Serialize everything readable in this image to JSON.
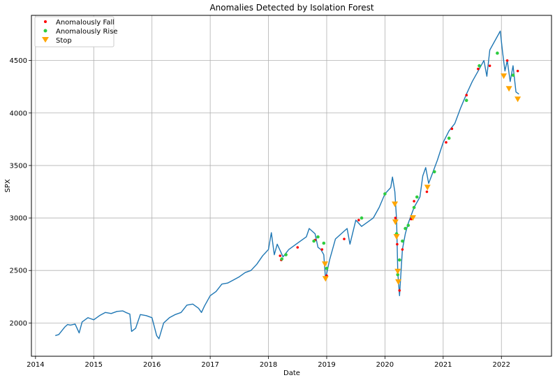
{
  "chart_data": {
    "type": "line",
    "title": "Anomalies Detected by Isolation Forest",
    "xlabel": "Date",
    "ylabel": "SPX",
    "xlim": [
      2013.93,
      2022.86
    ],
    "ylim": [
      1683,
      4930
    ],
    "grid": true,
    "legend_position": "top-left",
    "x_ticks": [
      "2014",
      "2015",
      "2016",
      "2017",
      "2018",
      "2019",
      "2020",
      "2021",
      "2022"
    ],
    "y_ticks": [
      2000,
      2500,
      3000,
      3500,
      4000,
      4500
    ],
    "colors": {
      "price": "#1f77b4",
      "fall": "#ff0000",
      "rise": "#2ecc40",
      "stop": "#ffa500"
    },
    "series": [
      {
        "name": "SPX",
        "x": [
          2014.34,
          2014.4,
          2014.5,
          2014.55,
          2014.6,
          2014.68,
          2014.75,
          2014.8,
          2014.9,
          2015.0,
          2015.1,
          2015.2,
          2015.3,
          2015.4,
          2015.5,
          2015.55,
          2015.62,
          2015.65,
          2015.72,
          2015.8,
          2015.9,
          2016.0,
          2016.08,
          2016.12,
          2016.2,
          2016.3,
          2016.4,
          2016.5,
          2016.6,
          2016.7,
          2016.8,
          2016.85,
          2016.9,
          2017.0,
          2017.1,
          2017.2,
          2017.3,
          2017.4,
          2017.5,
          2017.6,
          2017.7,
          2017.8,
          2017.9,
          2018.0,
          2018.05,
          2018.1,
          2018.15,
          2018.25,
          2018.35,
          2018.45,
          2018.55,
          2018.65,
          2018.7,
          2018.8,
          2018.85,
          2018.9,
          2018.95,
          2018.98,
          2019.05,
          2019.15,
          2019.25,
          2019.35,
          2019.4,
          2019.5,
          2019.6,
          2019.7,
          2019.8,
          2019.9,
          2020.0,
          2020.1,
          2020.13,
          2020.17,
          2020.2,
          2020.22,
          2020.25,
          2020.3,
          2020.35,
          2020.4,
          2020.5,
          2020.6,
          2020.65,
          2020.7,
          2020.75,
          2020.8,
          2020.9,
          2021.0,
          2021.1,
          2021.2,
          2021.3,
          2021.4,
          2021.5,
          2021.6,
          2021.7,
          2021.75,
          2021.8,
          2021.9,
          2021.98,
          2022.02,
          2022.06,
          2022.1,
          2022.15,
          2022.2,
          2022.25,
          2022.3
        ],
        "y": [
          1880,
          1890,
          1960,
          1985,
          1980,
          1990,
          1905,
          2010,
          2050,
          2030,
          2070,
          2100,
          2090,
          2110,
          2115,
          2100,
          2085,
          1920,
          1950,
          2080,
          2070,
          2050,
          1880,
          1850,
          2000,
          2050,
          2080,
          2100,
          2170,
          2180,
          2140,
          2100,
          2160,
          2260,
          2300,
          2370,
          2380,
          2410,
          2440,
          2480,
          2500,
          2560,
          2640,
          2700,
          2860,
          2650,
          2750,
          2630,
          2700,
          2740,
          2780,
          2820,
          2900,
          2850,
          2720,
          2700,
          2650,
          2420,
          2600,
          2800,
          2850,
          2900,
          2750,
          2980,
          2920,
          2960,
          3000,
          3100,
          3230,
          3290,
          3390,
          3250,
          2980,
          2480,
          2260,
          2700,
          2850,
          2950,
          3100,
          3200,
          3400,
          3480,
          3330,
          3400,
          3550,
          3720,
          3830,
          3900,
          4050,
          4180,
          4300,
          4400,
          4500,
          4350,
          4600,
          4700,
          4780,
          4580,
          4400,
          4500,
          4300,
          4450,
          4200,
          4180
        ]
      },
      {
        "name": "Anomalously Fall",
        "x": [
          2018.2,
          2018.22,
          2018.5,
          2018.8,
          2018.92,
          2019.0,
          2019.3,
          2019.55,
          2020.18,
          2020.21,
          2020.23,
          2020.25,
          2020.3,
          2020.45,
          2020.5,
          2020.72,
          2021.05,
          2021.15,
          2021.4,
          2021.6,
          2021.8,
          2022.1,
          2022.28
        ],
        "y": [
          2640,
          2600,
          2720,
          2790,
          2700,
          2450,
          2800,
          2980,
          3000,
          2750,
          2400,
          2310,
          2700,
          2990,
          3160,
          3250,
          3720,
          3850,
          4170,
          4420,
          4450,
          4500,
          4400
        ]
      },
      {
        "name": "Anomalously Rise",
        "x": [
          2018.23,
          2018.3,
          2018.78,
          2018.85,
          2018.95,
          2019.0,
          2019.6,
          2020.0,
          2020.2,
          2020.22,
          2020.25,
          2020.3,
          2020.35,
          2020.4,
          2020.5,
          2020.55,
          2020.85,
          2021.1,
          2021.4,
          2021.62,
          2021.93,
          2022.2
        ],
        "y": [
          2610,
          2650,
          2780,
          2820,
          2760,
          2520,
          3000,
          3230,
          2850,
          2460,
          2600,
          2780,
          2900,
          2930,
          3100,
          3200,
          3440,
          3760,
          4120,
          4450,
          4570,
          4360
        ]
      },
      {
        "name": "Stop",
        "x": [
          2018.97,
          2018.98,
          2020.17,
          2020.18,
          2020.2,
          2020.22,
          2020.23,
          2020.48,
          2020.73,
          2022.04,
          2022.13,
          2022.28
        ],
        "y": [
          2560,
          2420,
          3130,
          2960,
          2820,
          2490,
          2390,
          3000,
          3290,
          4350,
          4230,
          4130
        ]
      }
    ]
  }
}
